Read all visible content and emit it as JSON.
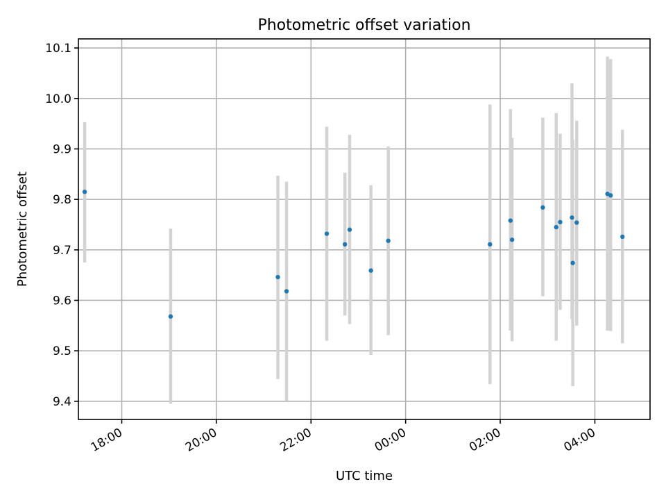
{
  "chart_data": {
    "type": "scatter",
    "title": "Photometric offset variation",
    "xlabel": "UTC time",
    "ylabel": "Photometric offset",
    "x_axis": {
      "kind": "time",
      "reference_date": "",
      "range": [
        "17:05",
        "05:10"
      ],
      "ticks": [
        "18:00",
        "20:00",
        "22:00",
        "00:00",
        "02:00",
        "04:00"
      ]
    },
    "y_axis": {
      "range": [
        9.364,
        10.118
      ],
      "ticks": [
        "9.4",
        "9.5",
        "9.6",
        "9.7",
        "9.8",
        "9.9",
        "10.0",
        "10.1"
      ]
    },
    "grid": true,
    "colors": {
      "point": "#1f77b4",
      "errorbar": "#d3d3d3"
    },
    "points": [
      {
        "x": "17:13",
        "y": 9.815,
        "ylo": 9.675,
        "yhi": 9.953
      },
      {
        "x": "19:02",
        "y": 9.568,
        "ylo": 9.395,
        "yhi": 9.742
      },
      {
        "x": "21:18",
        "y": 9.646,
        "ylo": 9.444,
        "yhi": 9.847
      },
      {
        "x": "21:29",
        "y": 9.618,
        "ylo": 9.401,
        "yhi": 9.835
      },
      {
        "x": "22:20",
        "y": 9.732,
        "ylo": 9.52,
        "yhi": 9.944
      },
      {
        "x": "22:43",
        "y": 9.711,
        "ylo": 9.57,
        "yhi": 9.853
      },
      {
        "x": "22:49",
        "y": 9.74,
        "ylo": 9.553,
        "yhi": 9.928
      },
      {
        "x": "23:16",
        "y": 9.659,
        "ylo": 9.492,
        "yhi": 9.828
      },
      {
        "x": "23:38",
        "y": 9.718,
        "ylo": 9.531,
        "yhi": 9.905
      },
      {
        "x": "01:47",
        "y": 9.711,
        "ylo": 9.434,
        "yhi": 9.988
      },
      {
        "x": "02:13",
        "y": 9.758,
        "ylo": 9.54,
        "yhi": 9.979
      },
      {
        "x": "02:15",
        "y": 9.72,
        "ylo": 9.519,
        "yhi": 9.922
      },
      {
        "x": "02:54",
        "y": 9.784,
        "ylo": 9.608,
        "yhi": 9.962
      },
      {
        "x": "03:11",
        "y": 9.745,
        "ylo": 9.52,
        "yhi": 9.971
      },
      {
        "x": "03:16",
        "y": 9.755,
        "ylo": 9.581,
        "yhi": 9.93
      },
      {
        "x": "03:31",
        "y": 9.764,
        "ylo": 9.563,
        "yhi": 10.03
      },
      {
        "x": "03:32",
        "y": 9.674,
        "ylo": 9.43,
        "yhi": 9.918
      },
      {
        "x": "03:37",
        "y": 9.754,
        "ylo": 9.55,
        "yhi": 9.956
      },
      {
        "x": "04:16",
        "y": 9.811,
        "ylo": 9.54,
        "yhi": 10.083
      },
      {
        "x": "04:20",
        "y": 9.808,
        "ylo": 9.539,
        "yhi": 10.078
      },
      {
        "x": "04:35",
        "y": 9.726,
        "ylo": 9.515,
        "yhi": 9.938
      }
    ]
  }
}
